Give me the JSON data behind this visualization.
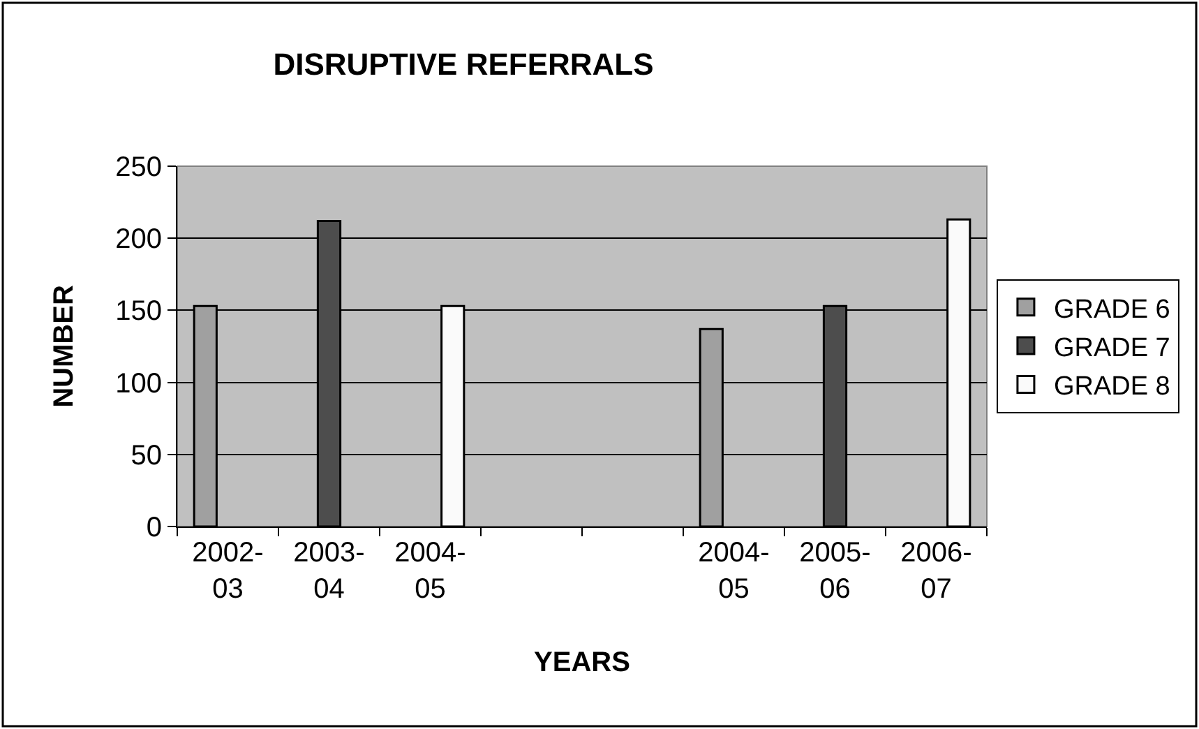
{
  "chart_data": {
    "type": "bar",
    "title": "DISRUPTIVE REFERRALS",
    "xlabel": "YEARS",
    "ylabel": "NUMBER",
    "categories": [
      "2002-03",
      "2003-04",
      "2004-05",
      null,
      null,
      "2004-05",
      "2005-06",
      "2006-07"
    ],
    "series": [
      {
        "name": "GRADE 6",
        "color": "#a0a0a0",
        "values": [
          153,
          null,
          null,
          null,
          null,
          137,
          null,
          null
        ]
      },
      {
        "name": "GRADE 7",
        "color": "#4d4d4d",
        "values": [
          null,
          212,
          null,
          null,
          null,
          null,
          153,
          null
        ]
      },
      {
        "name": "GRADE 8",
        "color": "#fafafa",
        "values": [
          null,
          null,
          153,
          null,
          null,
          null,
          null,
          213
        ]
      }
    ],
    "ylim": [
      0,
      250
    ],
    "yticks": [
      0,
      50,
      100,
      150,
      200,
      250
    ],
    "grid": "y",
    "legend": "right"
  }
}
